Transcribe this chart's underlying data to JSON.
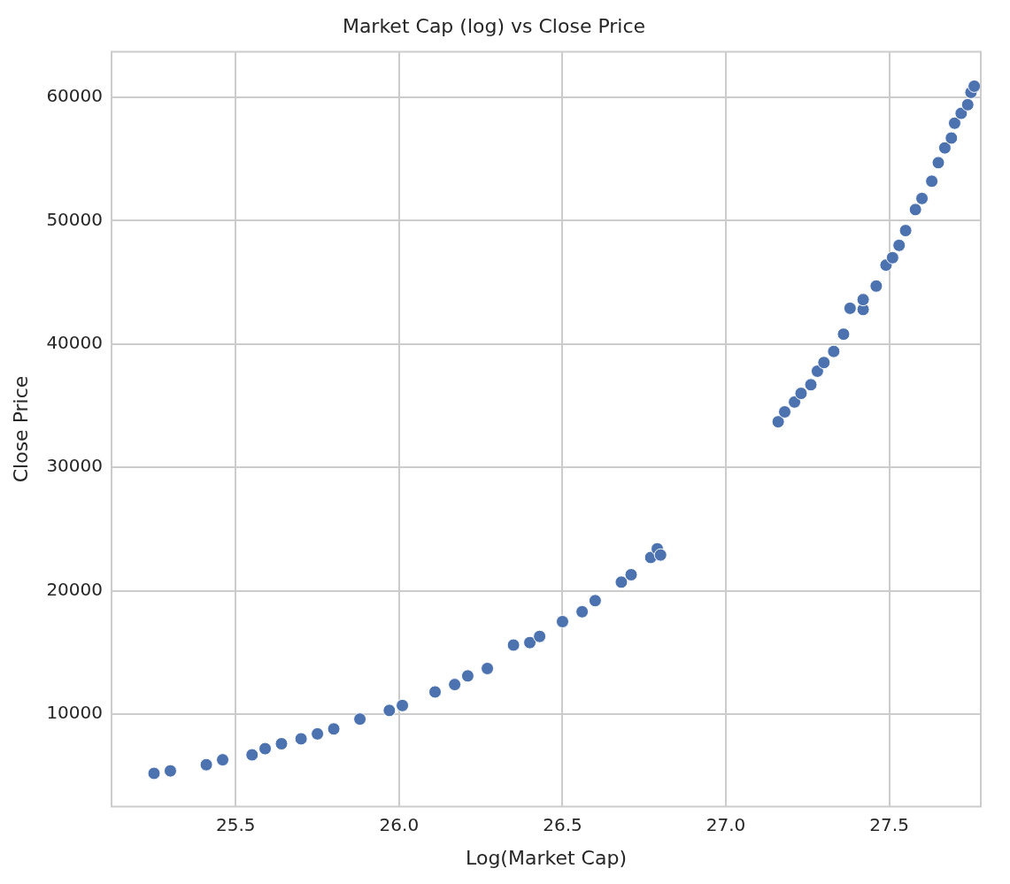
{
  "chart_data": {
    "type": "scatter",
    "title": "Market Cap (log) vs Close Price",
    "xlabel": "Log(Market Cap)",
    "ylabel": "Close Price",
    "x": [
      25.25,
      25.3,
      25.41,
      25.46,
      25.55,
      25.59,
      25.64,
      25.7,
      25.75,
      25.8,
      25.88,
      25.97,
      26.01,
      26.11,
      26.17,
      26.21,
      26.27,
      26.35,
      26.4,
      26.43,
      26.5,
      26.56,
      26.6,
      26.68,
      26.71,
      26.77,
      26.79,
      26.8,
      27.16,
      27.18,
      27.21,
      27.23,
      27.26,
      27.28,
      27.3,
      27.33,
      27.36,
      27.38,
      27.42,
      27.42,
      27.46,
      27.49,
      27.51,
      27.53,
      27.55,
      27.58,
      27.6,
      27.63,
      27.65,
      27.67,
      27.69,
      27.7,
      27.72,
      27.74,
      27.75,
      27.76
    ],
    "series": [
      {
        "color": "#4c72b0",
        "values": [
          5200,
          5400,
          5900,
          6300,
          6700,
          7200,
          7600,
          8000,
          8400,
          8800,
          9600,
          10300,
          10700,
          11800,
          12400,
          13100,
          13700,
          15600,
          15800,
          16300,
          17500,
          18300,
          19200,
          20700,
          21300,
          22700,
          23400,
          22900,
          33700,
          34500,
          35300,
          36000,
          36700,
          37800,
          38500,
          39400,
          40800,
          42900,
          42800,
          43600,
          44700,
          46400,
          47000,
          48000,
          49200,
          50900,
          51800,
          53200,
          54700,
          55900,
          56700,
          57900,
          58700,
          59400,
          60400,
          60900
        ]
      }
    ],
    "marker": "circle",
    "grid": true,
    "xlim": [
      25.12,
      27.78
    ],
    "xticks": [
      25.5,
      {
        "value": 26,
        "label": "26.0"
      },
      26.5,
      {
        "value": 27,
        "label": "27.0"
      },
      27.5
    ],
    "ylim": [
      2500,
      63700
    ],
    "yticks": [
      10000,
      20000,
      30000,
      40000,
      50000,
      60000
    ]
  }
}
